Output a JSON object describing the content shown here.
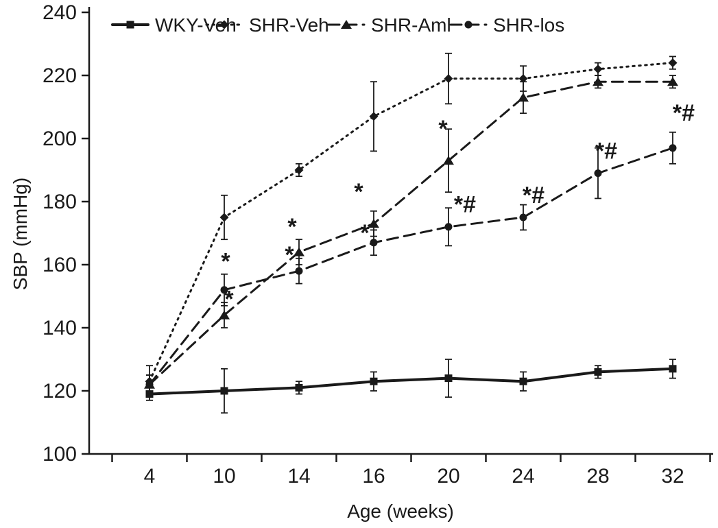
{
  "chart_data": {
    "type": "line",
    "title": "",
    "x": [
      4,
      10,
      14,
      16,
      20,
      24,
      28,
      32
    ],
    "xlabel": "Age (weeks)",
    "ylabel": "SBP (mmHg)",
    "ylim": [
      100,
      240
    ],
    "ytick_step": 20,
    "grid": false,
    "legend_position": "top",
    "ink_color": "#1a1a1a",
    "series": [
      {
        "name": "WKY-Veh",
        "line": "solid",
        "marker": "square",
        "values": [
          119,
          120,
          121,
          123,
          124,
          123,
          126,
          127
        ],
        "errors": [
          2,
          7,
          2,
          3,
          6,
          3,
          2,
          3
        ]
      },
      {
        "name": "SHR-Veh",
        "line": "dotted",
        "marker": "diamond",
        "values": [
          123,
          175,
          190,
          207,
          219,
          219,
          222,
          224
        ],
        "errors": [
          5,
          7,
          2,
          11,
          8,
          4,
          2,
          2
        ]
      },
      {
        "name": "SHR-Aml",
        "line": "dashed",
        "marker": "triangle",
        "values": [
          122,
          144,
          164,
          173,
          193,
          213,
          218,
          218
        ],
        "errors": [
          3,
          4,
          4,
          4,
          10,
          5,
          2,
          2
        ]
      },
      {
        "name": "SHR-los",
        "line": "dashed",
        "marker": "circle",
        "values": [
          122,
          152,
          158,
          167,
          172,
          175,
          189,
          197
        ],
        "errors": [
          3,
          5,
          4,
          4,
          6,
          4,
          8,
          5
        ]
      }
    ],
    "annotations": [
      {
        "x": 10,
        "y": 161,
        "text": "*",
        "dx": 2
      },
      {
        "x": 10,
        "y": 149,
        "text": "*",
        "dx": 7
      },
      {
        "x": 14,
        "y": 172,
        "text": "*",
        "dx": -10
      },
      {
        "x": 14,
        "y": 163,
        "text": "*",
        "dx": -14
      },
      {
        "x": 16,
        "y": 183,
        "text": "*",
        "dx": -22
      },
      {
        "x": 16,
        "y": 170,
        "text": "*",
        "dx": -13
      },
      {
        "x": 20,
        "y": 203,
        "text": "*",
        "dx": -8
      },
      {
        "x": 20,
        "y": 179,
        "text": "*#",
        "dx": 24
      },
      {
        "x": 24,
        "y": 182,
        "text": "*#",
        "dx": 15
      },
      {
        "x": 28,
        "y": 196,
        "text": "*#",
        "dx": 12
      },
      {
        "x": 32,
        "y": 208,
        "text": "*#",
        "dx": 16
      }
    ]
  }
}
